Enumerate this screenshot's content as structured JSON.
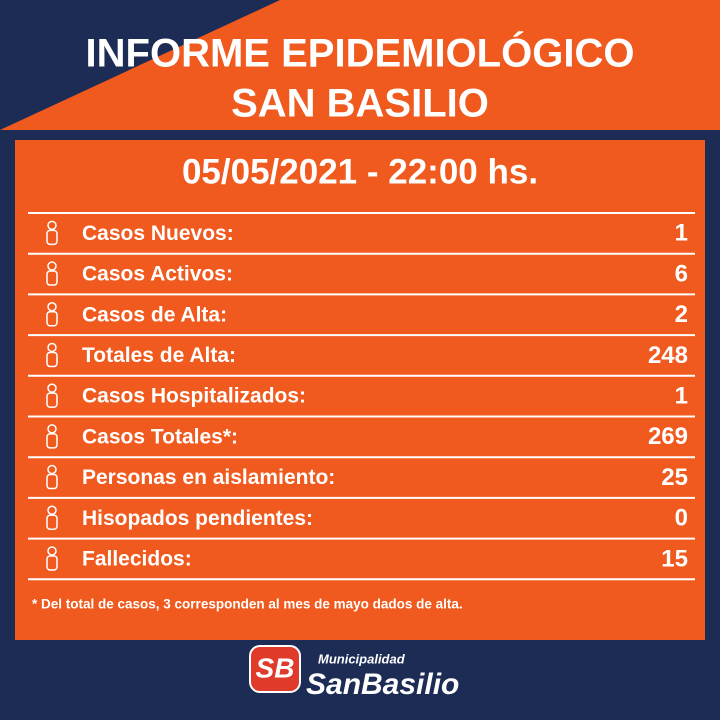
{
  "header": {
    "title": [
      "INFORME EPIDEMIOLÓGICO",
      "SAN BASILIO"
    ],
    "date": "05/05/2021 - 22:00 hs."
  },
  "table": {
    "rows": [
      {
        "label": "Casos Nuevos:",
        "value": 1
      },
      {
        "label": "Casos Activos:",
        "value": 6
      },
      {
        "label": "Casos de Alta:",
        "value": 2
      },
      {
        "label": "Totales de Alta:",
        "value": 248
      },
      {
        "label": "Casos Hospitalizados:",
        "value": 1
      },
      {
        "label": "Casos Totales*:",
        "value": 269
      },
      {
        "label": "Personas en aislamiento:",
        "value": 25
      },
      {
        "label": "Hisopados pendientes:",
        "value": 0
      },
      {
        "label": "Fallecidos:",
        "value": 15
      }
    ]
  },
  "footnote": "* Del total de casos, 3 corresponden al mes de mayo dados de alta.",
  "logo": {
    "badge": "SB",
    "top": "Municipalidad",
    "name": "SanBasilio"
  }
}
